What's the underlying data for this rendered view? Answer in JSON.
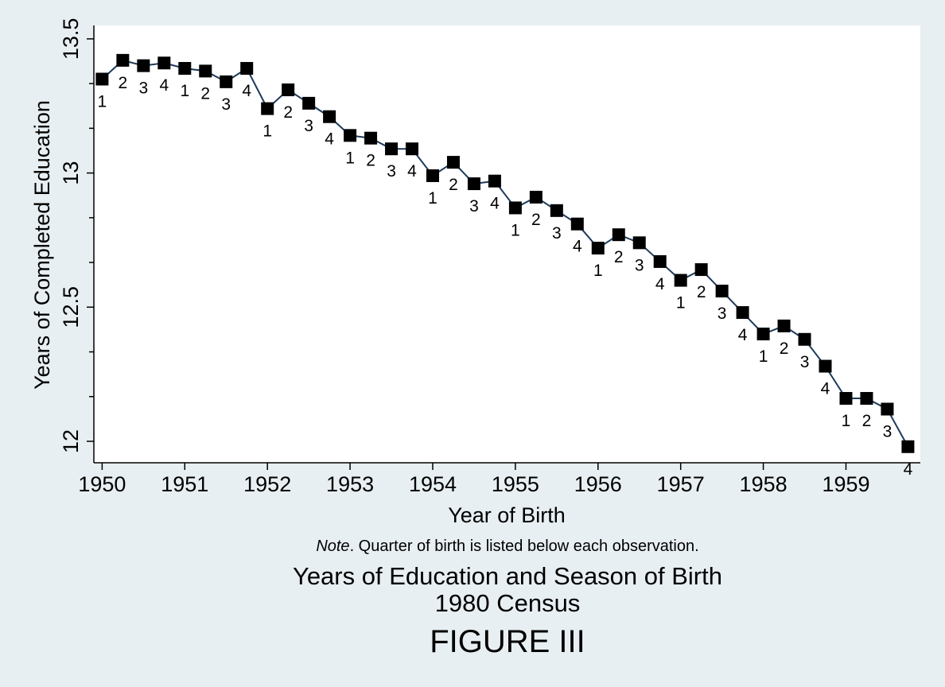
{
  "chart_data": {
    "type": "line",
    "xlabel": "Year of Birth",
    "ylabel": "Years of Completed Education",
    "xticks": [
      "1950",
      "1951",
      "1952",
      "1953",
      "1954",
      "1955",
      "1956",
      "1957",
      "1958",
      "1959"
    ],
    "xlim": [
      1949.9,
      1959.9
    ],
    "yticks": [
      "12",
      "12.5",
      "13",
      "13.5"
    ],
    "ylim": [
      11.92,
      13.55
    ],
    "grid": false,
    "marker": "square",
    "colors": {
      "line": "#1e3a5a",
      "marker": "#000000",
      "plot_bg": "#ffffff",
      "page_bg": "#e8eff2"
    },
    "points": [
      {
        "x": 1950.0,
        "y": 13.35,
        "q": "1"
      },
      {
        "x": 1950.25,
        "y": 13.42,
        "q": "2"
      },
      {
        "x": 1950.5,
        "y": 13.4,
        "q": "3"
      },
      {
        "x": 1950.75,
        "y": 13.41,
        "q": "4"
      },
      {
        "x": 1951.0,
        "y": 13.39,
        "q": "1"
      },
      {
        "x": 1951.25,
        "y": 13.38,
        "q": "2"
      },
      {
        "x": 1951.5,
        "y": 13.34,
        "q": "3"
      },
      {
        "x": 1951.75,
        "y": 13.39,
        "q": "4"
      },
      {
        "x": 1952.0,
        "y": 13.24,
        "q": "1"
      },
      {
        "x": 1952.25,
        "y": 13.31,
        "q": "2"
      },
      {
        "x": 1952.5,
        "y": 13.26,
        "q": "3"
      },
      {
        "x": 1952.75,
        "y": 13.21,
        "q": "4"
      },
      {
        "x": 1953.0,
        "y": 13.14,
        "q": "1"
      },
      {
        "x": 1953.25,
        "y": 13.13,
        "q": "2"
      },
      {
        "x": 1953.5,
        "y": 13.09,
        "q": "3"
      },
      {
        "x": 1953.75,
        "y": 13.09,
        "q": "4"
      },
      {
        "x": 1954.0,
        "y": 12.99,
        "q": "1"
      },
      {
        "x": 1954.25,
        "y": 13.04,
        "q": "2"
      },
      {
        "x": 1954.5,
        "y": 12.96,
        "q": "3"
      },
      {
        "x": 1954.75,
        "y": 12.97,
        "q": "4"
      },
      {
        "x": 1955.0,
        "y": 12.87,
        "q": "1"
      },
      {
        "x": 1955.25,
        "y": 12.91,
        "q": "2"
      },
      {
        "x": 1955.5,
        "y": 12.86,
        "q": "3"
      },
      {
        "x": 1955.75,
        "y": 12.81,
        "q": "4"
      },
      {
        "x": 1956.0,
        "y": 12.72,
        "q": "1"
      },
      {
        "x": 1956.25,
        "y": 12.77,
        "q": "2"
      },
      {
        "x": 1956.5,
        "y": 12.74,
        "q": "3"
      },
      {
        "x": 1956.75,
        "y": 12.67,
        "q": "4"
      },
      {
        "x": 1957.0,
        "y": 12.6,
        "q": "1"
      },
      {
        "x": 1957.25,
        "y": 12.64,
        "q": "2"
      },
      {
        "x": 1957.5,
        "y": 12.56,
        "q": "3"
      },
      {
        "x": 1957.75,
        "y": 12.48,
        "q": "4"
      },
      {
        "x": 1958.0,
        "y": 12.4,
        "q": "1"
      },
      {
        "x": 1958.25,
        "y": 12.43,
        "q": "2"
      },
      {
        "x": 1958.5,
        "y": 12.38,
        "q": "3"
      },
      {
        "x": 1958.75,
        "y": 12.28,
        "q": "4"
      },
      {
        "x": 1959.0,
        "y": 12.16,
        "q": "1"
      },
      {
        "x": 1959.25,
        "y": 12.16,
        "q": "2"
      },
      {
        "x": 1959.5,
        "y": 12.12,
        "q": "3"
      },
      {
        "x": 1959.75,
        "y": 11.98,
        "q": "4"
      }
    ]
  },
  "note": {
    "italic": "Note",
    "text": ". Quarter of birth is listed below each observation."
  },
  "title": "Years of Education and Season of Birth",
  "subtitle": "1980 Census",
  "figure_label": "FIGURE III"
}
